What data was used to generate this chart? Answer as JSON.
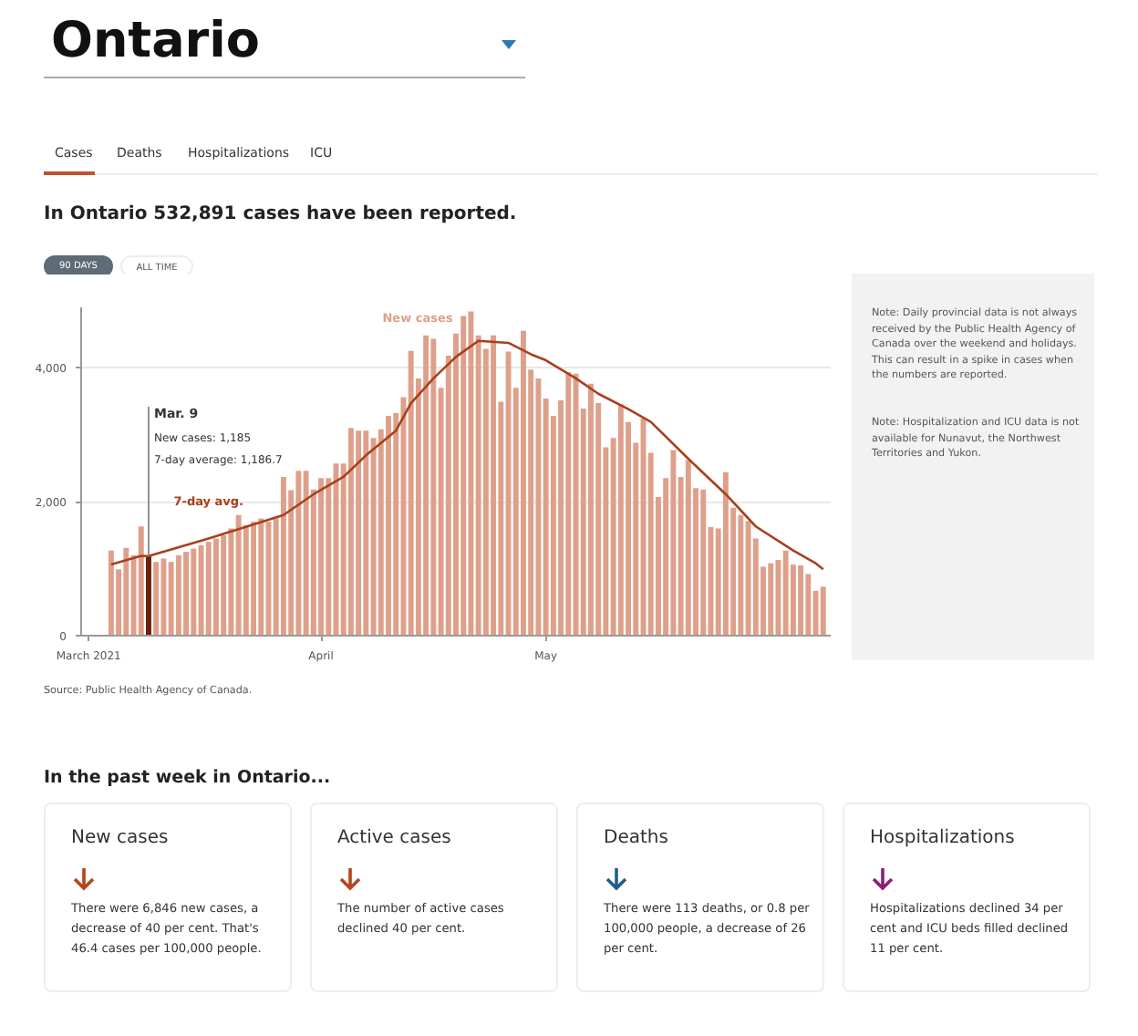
{
  "chart_data": {
    "type": "bar",
    "title": "Ontario",
    "subtitle": "In Ontario 532,891 cases have been reported.",
    "x": [
      "2021-03-04",
      "2021-03-05",
      "2021-03-06",
      "2021-03-07",
      "2021-03-08",
      "2021-03-09",
      "2021-03-10",
      "2021-03-11",
      "2021-03-12",
      "2021-03-13",
      "2021-03-14",
      "2021-03-15",
      "2021-03-16",
      "2021-03-17",
      "2021-03-18",
      "2021-03-19",
      "2021-03-20",
      "2021-03-21",
      "2021-03-22",
      "2021-03-23",
      "2021-03-24",
      "2021-03-25",
      "2021-03-26",
      "2021-03-27",
      "2021-03-28",
      "2021-03-29",
      "2021-03-30",
      "2021-03-31",
      "2021-04-01",
      "2021-04-02",
      "2021-04-03",
      "2021-04-04",
      "2021-04-05",
      "2021-04-06",
      "2021-04-07",
      "2021-04-08",
      "2021-04-09",
      "2021-04-10",
      "2021-04-11",
      "2021-04-12",
      "2021-04-13",
      "2021-04-14",
      "2021-04-15",
      "2021-04-16",
      "2021-04-17",
      "2021-04-18",
      "2021-04-19",
      "2021-04-20",
      "2021-04-21",
      "2021-04-22",
      "2021-04-23",
      "2021-04-24",
      "2021-04-25",
      "2021-04-26",
      "2021-04-27",
      "2021-04-28",
      "2021-04-29",
      "2021-04-30",
      "2021-05-01",
      "2021-05-02",
      "2021-05-03",
      "2021-05-04",
      "2021-05-05",
      "2021-05-06",
      "2021-05-07",
      "2021-05-08",
      "2021-05-09",
      "2021-05-10",
      "2021-05-11",
      "2021-05-12",
      "2021-05-13",
      "2021-05-14",
      "2021-05-15",
      "2021-05-16",
      "2021-05-17",
      "2021-05-18",
      "2021-05-19",
      "2021-05-20",
      "2021-05-21",
      "2021-05-22",
      "2021-05-23",
      "2021-05-24",
      "2021-05-25",
      "2021-05-26",
      "2021-05-27",
      "2021-05-28",
      "2021-05-29",
      "2021-05-30",
      "2021-05-31",
      "2021-06-01",
      "2021-06-02",
      "2021-06-03",
      "2021-06-04",
      "2021-06-05",
      "2021-06-06",
      "2021-06-07"
    ],
    "series": [
      {
        "name": "New cases",
        "color": "#dea08a",
        "values": [
          1270,
          990,
          1310,
          1200,
          1630,
          1185,
          1100,
          1150,
          1100,
          1200,
          1250,
          1300,
          1350,
          1400,
          1450,
          1500,
          1600,
          1800,
          1650,
          1700,
          1750,
          1700,
          1750,
          2370,
          2170,
          2460,
          2460,
          2180,
          2350,
          2350,
          2570,
          2570,
          3100,
          3060,
          3060,
          2950,
          3080,
          3280,
          3320,
          3560,
          4250,
          3840,
          4480,
          4430,
          3700,
          4180,
          4510,
          4770,
          4840,
          4480,
          4280,
          4480,
          3490,
          4240,
          3700,
          4550,
          3970,
          3840,
          3540,
          3280,
          3510,
          3930,
          3910,
          3390,
          3760,
          3470,
          2810,
          2950,
          3450,
          3190,
          2880,
          3240,
          2730,
          2070,
          2350,
          2770,
          2370,
          2620,
          2200,
          2180,
          1620,
          1600,
          2440,
          1910,
          1800,
          1710,
          1450,
          1030,
          1080,
          1130,
          1270,
          1060,
          1050,
          920,
          670,
          730
        ],
        "colors": [
          "#dea08a",
          "#dea08a",
          "#dea08a",
          "#dea08a",
          "#dea08a",
          "#6e1f0c",
          "#dea08a",
          "#dea08a",
          "#dea08a",
          "#dea08a",
          "#dea08a",
          "#dea08a",
          "#dea08a",
          "#dea08a",
          "#dea08a",
          "#dea08a",
          "#dea08a",
          "#dea08a",
          "#dea08a",
          "#dea08a",
          "#dea08a",
          "#dea08a",
          "#dea08a",
          "#dea08a",
          "#dea08a",
          "#dea08a",
          "#dea08a",
          "#dea08a",
          "#dea08a",
          "#dea08a",
          "#dea08a",
          "#dea08a",
          "#dea08a",
          "#dea08a",
          "#dea08a",
          "#dea08a",
          "#dea08a",
          "#dea08a",
          "#dea08a",
          "#dea08a",
          "#dea08a",
          "#dea08a",
          "#dea08a",
          "#dea08a",
          "#dea08a",
          "#dea08a",
          "#dea08a",
          "#dea08a",
          "#dea08a",
          "#dea08a",
          "#dea08a",
          "#dea08a",
          "#dea08a",
          "#dea08a",
          "#dea08a",
          "#dea08a",
          "#dea08a",
          "#dea08a",
          "#dea08a",
          "#dea08a",
          "#dea08a",
          "#dea08a",
          "#dea08a",
          "#dea08a",
          "#dea08a",
          "#dea08a",
          "#dea08a",
          "#dea08a",
          "#dea08a",
          "#dea08a",
          "#dea08a",
          "#dea08a",
          "#dea08a",
          "#dea08a",
          "#dea08a",
          "#dea08a",
          "#dea08a",
          "#dea08a",
          "#dea08a",
          "#dea08a",
          "#dea08a",
          "#dea08a",
          "#dea08a",
          "#dea08a",
          "#dea08a",
          "#dea08a",
          "#dea08a",
          "#dea08a",
          "#dea08a",
          "#dea08a",
          "#dea08a",
          "#dea08a",
          "#dea08a",
          "#dea08a",
          "#dea08a",
          "#dea08a"
        ]
      },
      {
        "name": "7-day avg.",
        "type": "line",
        "color": "#a8401b",
        "x": [
          "2021-03-04",
          "2021-03-08",
          "2021-03-09",
          "2021-03-17",
          "2021-03-27",
          "2021-03-31",
          "2021-04-04",
          "2021-04-07",
          "2021-04-11",
          "2021-04-13",
          "2021-04-16",
          "2021-04-19",
          "2021-04-22",
          "2021-04-26",
          "2021-04-29",
          "2021-05-01",
          "2021-05-05",
          "2021-05-08",
          "2021-05-12",
          "2021-05-15",
          "2021-05-20",
          "2021-05-25",
          "2021-05-29",
          "2021-06-03",
          "2021-06-06",
          "2021-06-07"
        ],
        "values": [
          1060,
          1190,
          1187,
          1450,
          1800,
          2110,
          2370,
          2690,
          3060,
          3470,
          3840,
          4160,
          4400,
          4370,
          4200,
          4110,
          3840,
          3610,
          3380,
          3190,
          2640,
          2110,
          1630,
          1270,
          1080,
          990
        ]
      }
    ],
    "xlim": [
      "2021-02-28",
      "2021-06-08"
    ],
    "xticks": [
      {
        "value": "2021-03-01",
        "label": "March 2021"
      },
      {
        "value": "2021-04-01",
        "label": "April"
      },
      {
        "value": "2021-05-01",
        "label": "May"
      }
    ],
    "ylim": [
      0,
      4900
    ],
    "yticks": [
      0,
      {
        "value": 2000,
        "label": "2,000"
      },
      {
        "value": 4000,
        "label": "4,000"
      }
    ],
    "grid": "y",
    "annotations": [
      "Cases",
      "Deaths",
      "Hospitalizations",
      "ICU",
      "90 DAYS",
      "ALL TIME",
      "Note: Daily provincial data is not always received by the Public Health Agency of Canada over the weekend and holidays. This can result in a spike in cases when the numbers are reported.",
      "Note: Hospitalization and ICU data is not available for Nunavut, the Northwest Territories and Yukon.",
      "Source: Public Health Agency of Canada.",
      "In the past week in Ontario...",
      "New cases",
      "There were 6,846 new cases, a decrease of 40 per cent. That's 46.4 cases per 100,000 people.",
      "Active cases",
      "The number of active cases declined 40 per cent.",
      "Deaths",
      "There were 113 deaths, or 0.8 per 100,000 people, a decrease of 26 per cent.",
      "Hospitalizations",
      "Hospitalizations declined 34 per cent and ICU beds filled declined 11 per cent.",
      {
        "text": "Mar. 9",
        "x": "2021-03-09",
        "y": 1185
      },
      "New cases: 1,185",
      "7-day average: 1,186.7"
    ]
  }
}
